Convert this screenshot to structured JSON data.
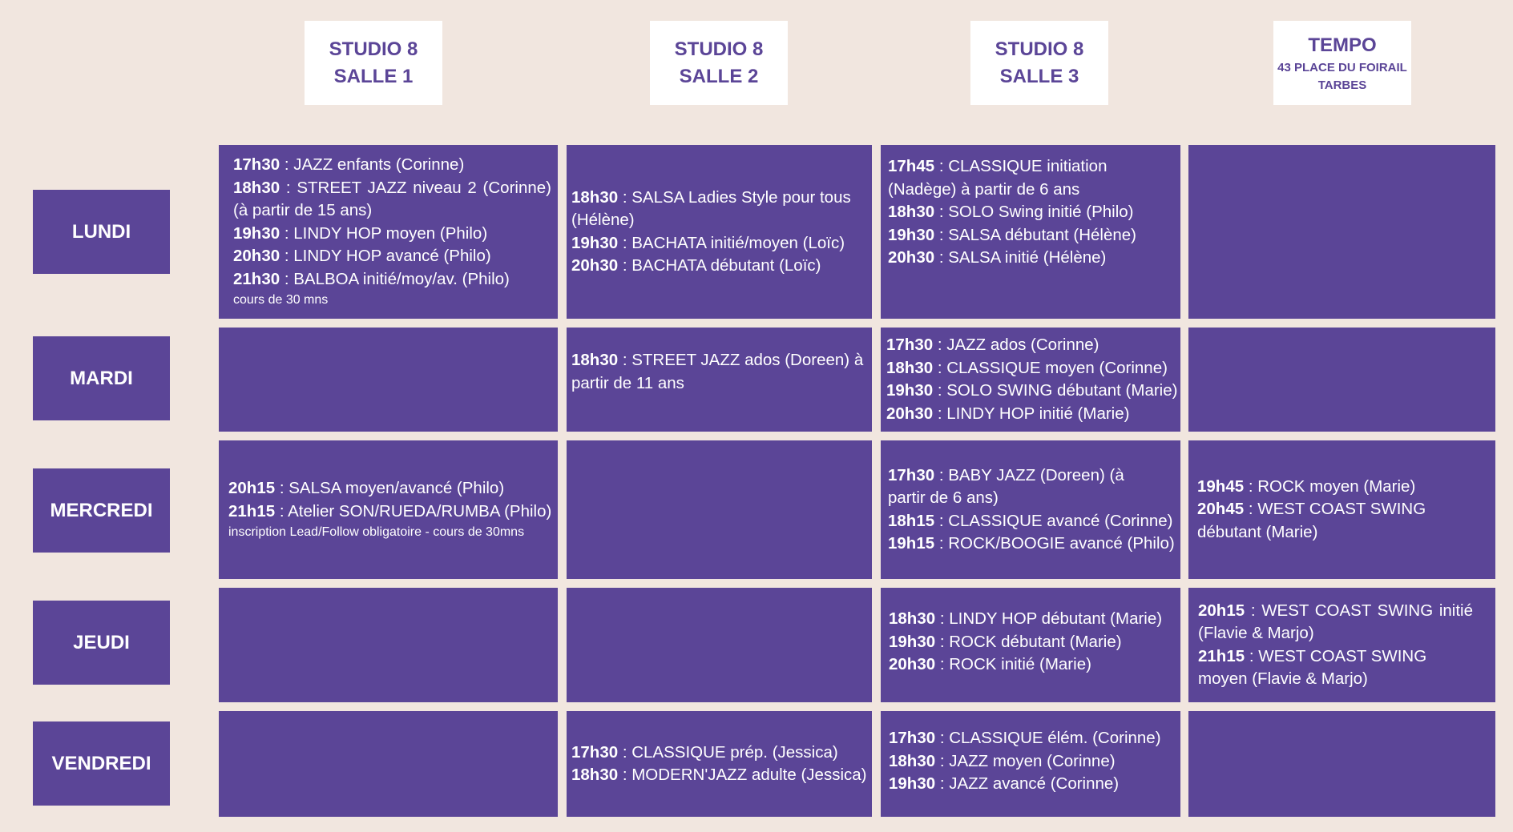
{
  "headers": {
    "salle1": {
      "line1": "STUDIO 8",
      "line2": "SALLE 1"
    },
    "salle2": {
      "line1": "STUDIO 8",
      "line2": "SALLE 2"
    },
    "salle3": {
      "line1": "STUDIO 8",
      "line2": "SALLE 3"
    },
    "tempo": {
      "line1": "TEMPO",
      "line2": "43 PLACE DU FOIRAIL",
      "line3": "TARBES"
    }
  },
  "days": {
    "lundi": "LUNDI",
    "mardi": "MARDI",
    "mercredi": "MERCREDI",
    "jeudi": "JEUDI",
    "vendredi": "VENDREDI"
  },
  "schedule": {
    "lundi": {
      "salle1": [
        {
          "time": "17h30",
          "text": " : JAZZ enfants (Corinne)"
        },
        {
          "time": "18h30",
          "text": " : STREET JAZZ niveau 2 (Corinne) (à partir de 15 ans)"
        },
        {
          "time": "19h30",
          "text": " : LINDY HOP moyen (Philo)"
        },
        {
          "time": "20h30",
          "text": " : LINDY HOP avancé (Philo)"
        },
        {
          "time": "21h30",
          "text": " : BALBOA initié/moy/av. (Philo)"
        }
      ],
      "salle1_note": "cours de 30 mns",
      "salle2": [
        {
          "time": "18h30",
          "text": " : SALSA Ladies Style pour tous (Hélène)"
        },
        {
          "time": "19h30",
          "text": " : BACHATA initié/moyen (Loïc)"
        },
        {
          "time": "20h30",
          "text": " : BACHATA débutant (Loïc)"
        }
      ],
      "salle3": [
        {
          "time": "17h45",
          "text": " : CLASSIQUE initiation (Nadège) à partir de 6 ans"
        },
        {
          "time": "18h30",
          "text": " : SOLO Swing initié (Philo)"
        },
        {
          "time": "19h30",
          "text": " : SALSA débutant (Hélène)"
        },
        {
          "time": "20h30",
          "text": " : SALSA initié (Hélène)"
        }
      ]
    },
    "mardi": {
      "salle2": [
        {
          "time": "18h30",
          "text": " : STREET JAZZ ados (Doreen) à partir de 11 ans"
        }
      ],
      "salle3": [
        {
          "time": "17h30",
          "text": " : JAZZ ados (Corinne)"
        },
        {
          "time": "18h30",
          "text": " : CLASSIQUE moyen (Corinne)"
        },
        {
          "time": "19h30",
          "text": " : SOLO SWING débutant (Marie)"
        },
        {
          "time": "20h30",
          "text": " : LINDY HOP initié (Marie)"
        }
      ]
    },
    "mercredi": {
      "salle1": [
        {
          "time": "20h15",
          "text": " : SALSA moyen/avancé (Philo)"
        },
        {
          "time": "21h15",
          "text": " : Atelier SON/RUEDA/RUMBA (Philo)"
        }
      ],
      "salle1_note": "inscription Lead/Follow obligatoire - cours de 30mns",
      "salle3": [
        {
          "time": "17h30",
          "text": " : BABY JAZZ (Doreen) (à partir de 6 ans)"
        },
        {
          "time": "18h15",
          "text": " : CLASSIQUE avancé (Corinne)"
        },
        {
          "time": "19h15",
          "text": " : ROCK/BOOGIE avancé (Philo)"
        }
      ],
      "tempo": [
        {
          "time": "19h45",
          "text": " : ROCK moyen (Marie)"
        },
        {
          "time": "20h45",
          "text": " : WEST COAST SWING débutant (Marie)"
        }
      ]
    },
    "jeudi": {
      "salle3": [
        {
          "time": "18h30",
          "text": " : LINDY HOP débutant (Marie)"
        },
        {
          "time": "19h30",
          "text": " : ROCK débutant (Marie)"
        },
        {
          "time": "20h30",
          "text": " : ROCK initié (Marie)"
        }
      ],
      "tempo": [
        {
          "time": "20h15",
          "text": " : WEST COAST SWING initié (Flavie & Marjo)"
        },
        {
          "time": "21h15",
          "text": " : WEST COAST SWING moyen (Flavie & Marjo)"
        }
      ]
    },
    "vendredi": {
      "salle2": [
        {
          "time": "17h30",
          "text": " : CLASSIQUE prép. (Jessica)"
        },
        {
          "time": "18h30",
          "text": " : MODERN'JAZZ adulte (Jessica)"
        }
      ],
      "salle3": [
        {
          "time": "17h30",
          "text": " : CLASSIQUE élém. (Corinne)"
        },
        {
          "time": "18h30",
          "text": " : JAZZ moyen (Corinne)"
        },
        {
          "time": "19h30",
          "text": " : JAZZ avancé (Corinne)"
        }
      ]
    }
  },
  "colors": {
    "background": "#f1e6df",
    "cell": "#5b4597",
    "header_bg": "#ffffff",
    "header_text": "#5b4597"
  }
}
